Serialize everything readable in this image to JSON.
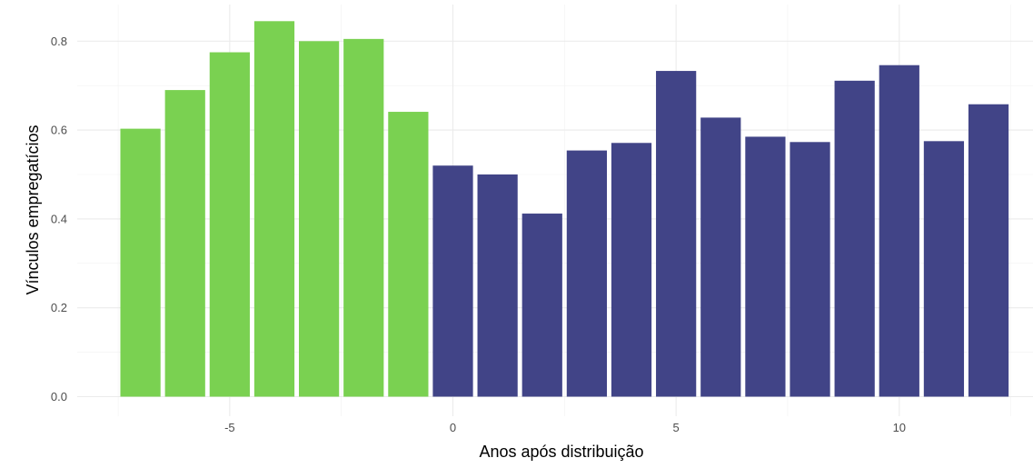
{
  "chart_data": {
    "type": "bar",
    "title": "",
    "xlabel": "Anos após distribuição",
    "ylabel": "Vínculos empregatícios",
    "x": [
      -7,
      -6,
      -5,
      -4,
      -3,
      -2,
      -1,
      0,
      1,
      2,
      3,
      4,
      5,
      6,
      7,
      8,
      9,
      10,
      11,
      12
    ],
    "values": [
      0.603,
      0.69,
      0.775,
      0.845,
      0.8,
      0.805,
      0.641,
      0.52,
      0.5,
      0.412,
      0.554,
      0.571,
      0.733,
      0.628,
      0.585,
      0.573,
      0.711,
      0.746,
      0.575,
      0.658
    ],
    "group": [
      "before",
      "before",
      "before",
      "before",
      "before",
      "before",
      "before",
      "after",
      "after",
      "after",
      "after",
      "after",
      "after",
      "after",
      "after",
      "after",
      "after",
      "after",
      "after",
      "after"
    ],
    "colors": {
      "before": "#7AD151",
      "after": "#414487"
    },
    "xlim": [
      -7.5,
      12.5
    ],
    "ylim": [
      0,
      0.85
    ],
    "xticks": [
      -5,
      0,
      5,
      10
    ],
    "xtick_labels": [
      "-5",
      "0",
      "5",
      "10"
    ],
    "yticks": [
      0.0,
      0.2,
      0.4,
      0.6,
      0.8
    ],
    "ytick_labels": [
      "0.0",
      "0.2",
      "0.4",
      "0.6",
      "0.8"
    ],
    "grid": true,
    "legend": "none"
  }
}
